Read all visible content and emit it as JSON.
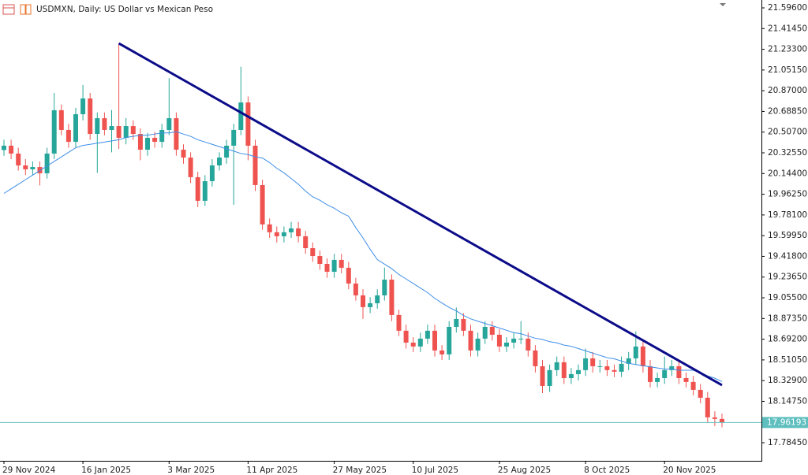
{
  "chart_data": {
    "type": "candlestick",
    "title": "USDMXN, Daily:  US Dollar vs Mexican Peso",
    "categories": [
      "29 Nov 2024",
      null,
      null,
      null,
      null,
      null,
      null,
      null,
      null,
      null,
      null,
      "16 Jan 2025",
      null,
      null,
      null,
      null,
      null,
      null,
      null,
      null,
      null,
      null,
      null,
      "3 Mar 2025",
      null,
      null,
      null,
      null,
      null,
      null,
      null,
      null,
      null,
      null,
      "11 Apr 2025",
      null,
      null,
      null,
      null,
      null,
      null,
      null,
      null,
      null,
      null,
      null,
      "27 May 2025",
      null,
      null,
      null,
      null,
      null,
      null,
      null,
      null,
      null,
      null,
      "10 Jul 2025",
      null,
      null,
      null,
      null,
      null,
      null,
      null,
      null,
      null,
      null,
      null,
      "25 Aug 2025",
      null,
      null,
      null,
      null,
      null,
      null,
      null,
      null,
      null,
      null,
      null,
      "8 Oct 2025",
      null,
      null,
      null,
      null,
      null,
      null,
      null,
      null,
      null,
      null,
      "20 Nov 2025",
      null,
      null,
      null,
      null,
      null,
      null,
      null,
      null
    ],
    "open": [
      20.35,
      20.388,
      20.319,
      20.215,
      20.181,
      20.201,
      20.146,
      20.319,
      20.699,
      20.526,
      20.422,
      20.664,
      20.802,
      20.491,
      20.629,
      20.526,
      20.56,
      20.457,
      20.56,
      20.491,
      20.353,
      20.457,
      20.422,
      20.526,
      20.629,
      20.353,
      20.284,
      20.112,
      19.905,
      20.077,
      20.215,
      20.284,
      20.388,
      20.526,
      20.767,
      20.388,
      20.043,
      19.698,
      19.629,
      19.594,
      19.629,
      19.663,
      19.594,
      19.49,
      19.421,
      19.352,
      19.283,
      19.387,
      19.318,
      19.18,
      19.076,
      18.973,
      19.007,
      19.076,
      19.214,
      18.904,
      18.766,
      18.662,
      18.628,
      18.697,
      18.766,
      18.593,
      18.559,
      18.8,
      18.869,
      18.766,
      18.593,
      18.697,
      18.8,
      18.731,
      18.628,
      18.662,
      18.697,
      18.697,
      18.593,
      18.455,
      18.282,
      18.421,
      18.49,
      18.351,
      18.386,
      18.421,
      18.524,
      18.455,
      18.455,
      18.421,
      18.407,
      18.476,
      18.524,
      18.628,
      18.455,
      18.317,
      18.351,
      18.421,
      18.455,
      18.351,
      18.317,
      18.248,
      18.179,
      18.007,
      17.993
    ],
    "high": [
      20.44,
      20.44,
      20.37,
      20.27,
      20.25,
      20.25,
      20.37,
      20.85,
      20.75,
      20.58,
      20.72,
      20.92,
      20.85,
      20.68,
      20.68,
      20.7,
      21.285,
      20.63,
      20.61,
      20.54,
      20.5,
      20.51,
      20.58,
      20.98,
      20.68,
      20.4,
      20.33,
      20.16,
      20.13,
      20.27,
      20.33,
      20.44,
      20.58,
      21.08,
      20.82,
      20.44,
      20.09,
      19.75,
      19.68,
      19.68,
      19.72,
      19.72,
      19.64,
      19.54,
      19.47,
      19.4,
      19.44,
      19.44,
      19.37,
      19.23,
      19.13,
      19.06,
      19.13,
      19.32,
      19.26,
      18.95,
      18.82,
      18.71,
      18.75,
      18.82,
      18.82,
      18.64,
      18.85,
      18.97,
      18.92,
      18.82,
      18.75,
      18.85,
      18.85,
      18.78,
      18.71,
      18.75,
      18.85,
      18.75,
      18.64,
      18.51,
      18.47,
      18.54,
      18.54,
      18.44,
      18.47,
      18.61,
      18.58,
      18.51,
      18.51,
      18.47,
      18.54,
      18.58,
      18.76,
      18.68,
      18.51,
      18.4,
      18.54,
      18.51,
      18.51,
      18.4,
      18.37,
      18.3,
      18.23,
      18.06,
      18.04
    ],
    "low": [
      20.3,
      20.27,
      20.17,
      20.13,
      20.13,
      20.04,
      20.1,
      20.27,
      20.48,
      20.37,
      20.37,
      20.61,
      20.44,
      20.15,
      20.48,
      20.33,
      20.36,
      20.4,
      20.44,
      20.26,
      20.3,
      20.37,
      20.37,
      20.48,
      20.3,
      20.23,
      20.06,
      19.85,
      19.86,
      20.03,
      20.17,
      20.23,
      19.87,
      20.48,
      20.26,
      19.99,
      19.65,
      19.58,
      19.54,
      19.54,
      19.58,
      19.54,
      19.44,
      19.37,
      19.3,
      19.23,
      19.23,
      19.27,
      19.13,
      19.03,
      18.87,
      18.92,
      18.96,
      19.03,
      18.85,
      18.72,
      18.61,
      18.58,
      18.58,
      18.65,
      18.54,
      18.51,
      18.51,
      18.75,
      18.72,
      18.54,
      18.54,
      18.65,
      18.68,
      18.58,
      18.58,
      18.61,
      18.65,
      18.54,
      18.4,
      18.22,
      18.23,
      18.37,
      18.3,
      18.3,
      18.33,
      18.37,
      18.4,
      18.4,
      18.37,
      18.36,
      18.36,
      18.42,
      18.47,
      18.4,
      18.27,
      18.27,
      18.3,
      18.37,
      18.3,
      18.27,
      18.2,
      18.13,
      17.96,
      17.93,
      17.92
    ],
    "close": [
      20.388,
      20.319,
      20.215,
      20.181,
      20.201,
      20.146,
      20.319,
      20.699,
      20.526,
      20.422,
      20.664,
      20.802,
      20.491,
      20.629,
      20.526,
      20.56,
      20.457,
      20.56,
      20.491,
      20.353,
      20.457,
      20.422,
      20.526,
      20.629,
      20.353,
      20.284,
      20.112,
      19.905,
      20.077,
      20.215,
      20.284,
      20.388,
      20.526,
      20.767,
      20.388,
      20.043,
      19.698,
      19.629,
      19.594,
      19.629,
      19.663,
      19.594,
      19.49,
      19.421,
      19.352,
      19.283,
      19.387,
      19.318,
      19.18,
      19.076,
      18.973,
      19.007,
      19.076,
      19.214,
      18.904,
      18.766,
      18.662,
      18.628,
      18.697,
      18.766,
      18.593,
      18.559,
      18.8,
      18.869,
      18.766,
      18.593,
      18.697,
      18.8,
      18.731,
      18.628,
      18.662,
      18.697,
      18.697,
      18.593,
      18.455,
      18.282,
      18.421,
      18.49,
      18.351,
      18.386,
      18.421,
      18.524,
      18.455,
      18.455,
      18.421,
      18.407,
      18.476,
      18.524,
      18.628,
      18.455,
      18.317,
      18.351,
      18.421,
      18.455,
      18.351,
      18.317,
      18.248,
      18.179,
      18.007,
      17.993,
      17.96193
    ],
    "up_color": "#26a69a",
    "down_color": "#ef5350",
    "moving_average": {
      "color": "#3d8ee8",
      "values": [
        19.97,
        20.01,
        20.05,
        20.09,
        20.13,
        20.17,
        20.21,
        20.25,
        20.29,
        20.33,
        20.37,
        20.39,
        20.4,
        20.41,
        20.42,
        20.43,
        20.44,
        20.46,
        20.47,
        20.48,
        20.48,
        20.49,
        20.5,
        20.5,
        20.51,
        20.49,
        20.47,
        20.44,
        20.42,
        20.4,
        20.38,
        20.36,
        20.34,
        20.32,
        20.31,
        20.29,
        20.28,
        20.24,
        20.19,
        20.15,
        20.1,
        20.05,
        19.99,
        19.94,
        19.91,
        19.87,
        19.84,
        19.8,
        19.77,
        19.67,
        19.58,
        19.48,
        19.39,
        19.35,
        19.31,
        19.26,
        19.22,
        19.18,
        19.14,
        19.1,
        19.05,
        19.01,
        18.97,
        18.94,
        18.9,
        18.87,
        18.85,
        18.83,
        18.81,
        18.79,
        18.77,
        18.75,
        18.74,
        18.72,
        18.7,
        18.69,
        18.67,
        18.66,
        18.64,
        18.63,
        18.61,
        18.59,
        18.57,
        18.55,
        18.53,
        18.52,
        18.5,
        18.48,
        18.47,
        18.46,
        18.45,
        18.44,
        18.43,
        18.43,
        18.42,
        18.42,
        18.42,
        18.4,
        18.37,
        18.35,
        18.32
      ]
    },
    "trend_line": {
      "color": "#0c0c8a",
      "anchors": [
        16,
        100
      ],
      "values": [
        21.285,
        18.289
      ]
    },
    "current_price_color": "#5fbfbf",
    "ylim": [
      17.626,
      21.665
    ],
    "yticks": [
      {
        "value": 21.596,
        "label": "21.59600"
      },
      {
        "value": 21.4145,
        "label": "21.41450"
      },
      {
        "value": 21.233,
        "label": "21.23300"
      },
      {
        "value": 21.0515,
        "label": "21.05150"
      },
      {
        "value": 20.87,
        "label": "20.87000"
      },
      {
        "value": 20.6885,
        "label": "20.68850"
      },
      {
        "value": 20.507,
        "label": "20.50700"
      },
      {
        "value": 20.3255,
        "label": "20.32550"
      },
      {
        "value": 20.144,
        "label": "20.14400"
      },
      {
        "value": 19.9625,
        "label": "19.96250"
      },
      {
        "value": 19.781,
        "label": "19.78100"
      },
      {
        "value": 19.5995,
        "label": "19.59950"
      },
      {
        "value": 19.418,
        "label": "19.41800"
      },
      {
        "value": 19.2365,
        "label": "19.23650"
      },
      {
        "value": 19.055,
        "label": "19.05500"
      },
      {
        "value": 18.8735,
        "label": "18.87350"
      },
      {
        "value": 18.692,
        "label": "18.69200"
      },
      {
        "value": 18.5105,
        "label": "18.51050"
      },
      {
        "value": 18.329,
        "label": "18.32900"
      },
      {
        "value": 18.1475,
        "label": "18.14750"
      },
      {
        "value": 17.7845,
        "label": "17.78450"
      }
    ],
    "grid": false
  }
}
